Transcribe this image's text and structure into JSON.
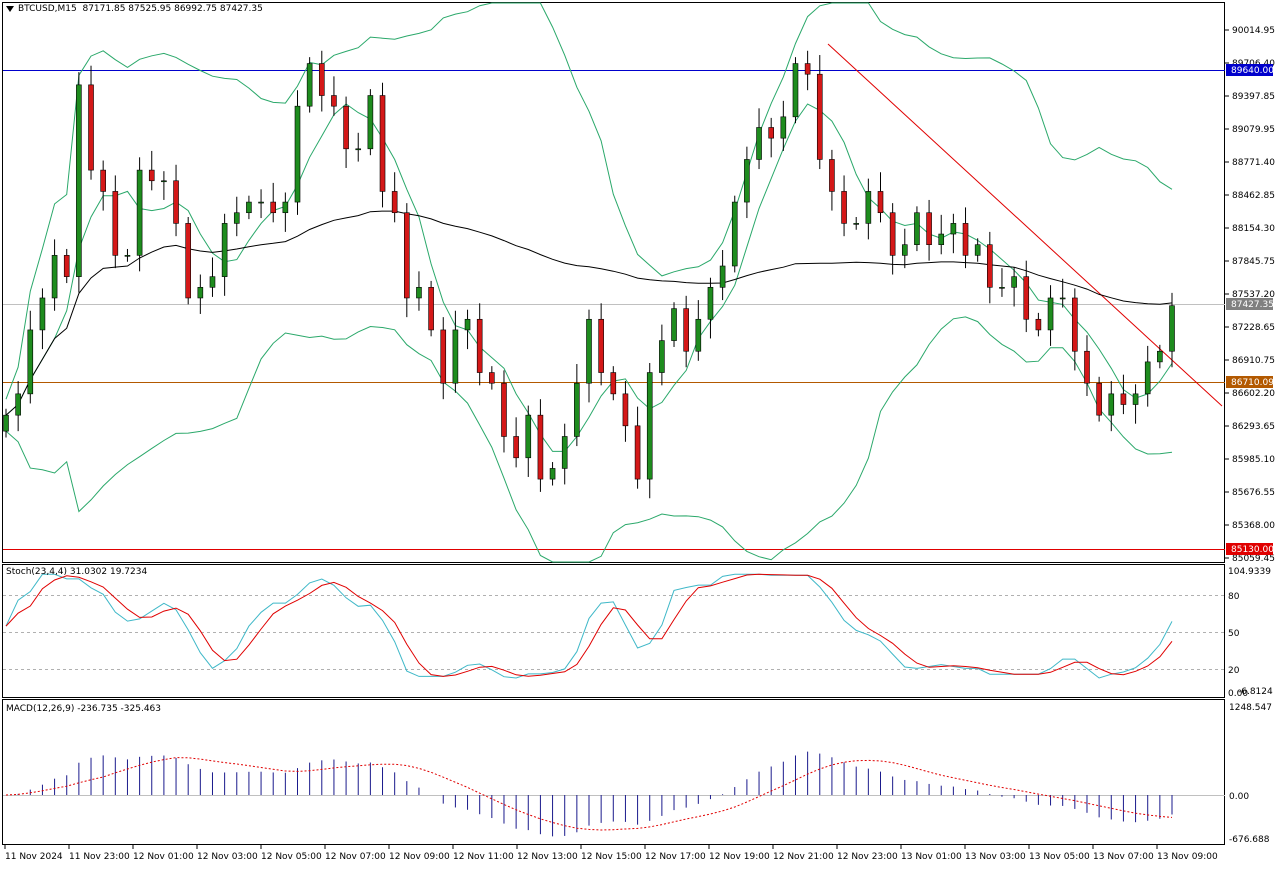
{
  "header": {
    "symbol": "BTCUSD,M15",
    "ohlc": "87171.85 87525.95 86992.75 87427.35"
  },
  "price_axis_ticks": [
    "90014.95",
    "89706.40",
    "89397.85",
    "89079.95",
    "88771.40",
    "88462.85",
    "88154.30",
    "87845.75",
    "87537.20",
    "87228.65",
    "86910.75",
    "86602.20",
    "86293.65",
    "85985.10",
    "85676.55",
    "85368.00",
    "85059.45"
  ],
  "price_tags": [
    {
      "name": "upper-level",
      "label": "89640.00",
      "color": "#0000cc"
    },
    {
      "name": "current-price",
      "label": "87427.35",
      "color": "#808080"
    },
    {
      "name": "mid-level",
      "label": "86710.09",
      "color": "#b35900"
    },
    {
      "name": "lower-level",
      "label": "85130.00",
      "color": "#e00000"
    }
  ],
  "stoch": {
    "label": "Stoch(23,4,4) 31.0302 19.7234",
    "ticks": [
      "104.9339",
      "80",
      "50",
      "20",
      "0.00",
      "-6.8124"
    ]
  },
  "macd": {
    "label": "MACD(12,26,9) -236.735 -325.463",
    "ticks": [
      "1248.547",
      "0.00",
      "-676.688"
    ]
  },
  "time_labels": [
    "11 Nov 2024",
    "11 Nov 23:00",
    "12 Nov 01:00",
    "12 Nov 03:00",
    "12 Nov 05:00",
    "12 Nov 07:00",
    "12 Nov 09:00",
    "12 Nov 11:00",
    "12 Nov 13:00",
    "12 Nov 15:00",
    "12 Nov 17:00",
    "12 Nov 19:00",
    "12 Nov 21:00",
    "12 Nov 23:00",
    "13 Nov 01:00",
    "13 Nov 03:00",
    "13 Nov 05:00",
    "13 Nov 07:00",
    "13 Nov 09:00"
  ],
  "colors": {
    "bull": "#1e8c1e",
    "bear": "#d41818",
    "bands": "#2aa86a",
    "ma": "#000000",
    "stoch_main": "#3fb8c8",
    "stoch_signal": "#e00000",
    "macd_hist": "#1a1a8c",
    "macd_signal": "#e00000"
  },
  "chart_data": {
    "type": "candlestick",
    "close_levels": [
      86400,
      86600,
      87200,
      87500,
      87900,
      87700,
      89500,
      88700,
      88500,
      87900,
      87900,
      88700,
      88600,
      88600,
      88200,
      87500,
      87600,
      87700,
      88200,
      88300,
      88400,
      88400,
      88300,
      88400,
      89300,
      89700,
      89400,
      89300,
      88900,
      88900,
      89400,
      88500,
      88300,
      87500,
      87600,
      87200,
      86700,
      87200,
      87300,
      86800,
      86700,
      86200,
      86000,
      86400,
      85800,
      85900,
      86200,
      86700,
      87300,
      86800,
      86600,
      86300,
      85800,
      86800,
      87100,
      87400,
      87000,
      87300,
      87600,
      87800,
      88400,
      88800,
      89100,
      89000,
      89200,
      89700,
      89600,
      88800,
      88500,
      88200,
      88200,
      88500,
      88300,
      87900,
      88000,
      88300,
      88000,
      88100,
      88200,
      87900,
      88000,
      87600,
      87600,
      87700,
      87300,
      87200,
      87500,
      87500,
      87000,
      86700,
      86400,
      86600,
      86500,
      86600,
      86900,
      87000,
      87427.35
    ]
  }
}
